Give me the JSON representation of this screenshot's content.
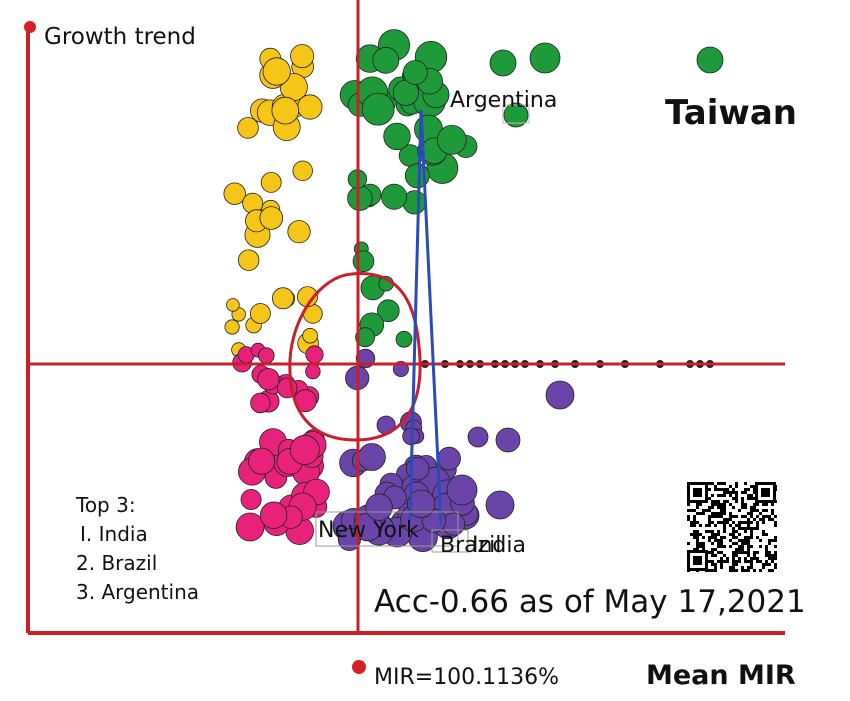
{
  "chart_data": {
    "type": "scatter",
    "title": "",
    "ylabel": "Growth trend",
    "xlabel": "Mean MIR",
    "x_marker_label": "MIR=100.1136%",
    "accuracy_text": "Acc-0.66  as of May 17,2021",
    "top3": {
      "heading": "Top 3:",
      "items": [
        "I. India",
        "2. Brazil",
        "3. Argentina"
      ]
    },
    "annotations": {
      "taiwan": "Taiwan",
      "argentina": "Argentina",
      "new_york": "New York",
      "brazil": "Brazil",
      "india": "India"
    },
    "quadrant_colors": {
      "yellow": "#f5c518",
      "green": "#1f9a3a",
      "pink": "#e8217a",
      "purple": "#6a44a8",
      "axis": "#c8202a",
      "trend": "#2a4bb8"
    },
    "qr_code": "qr-code-icon"
  }
}
